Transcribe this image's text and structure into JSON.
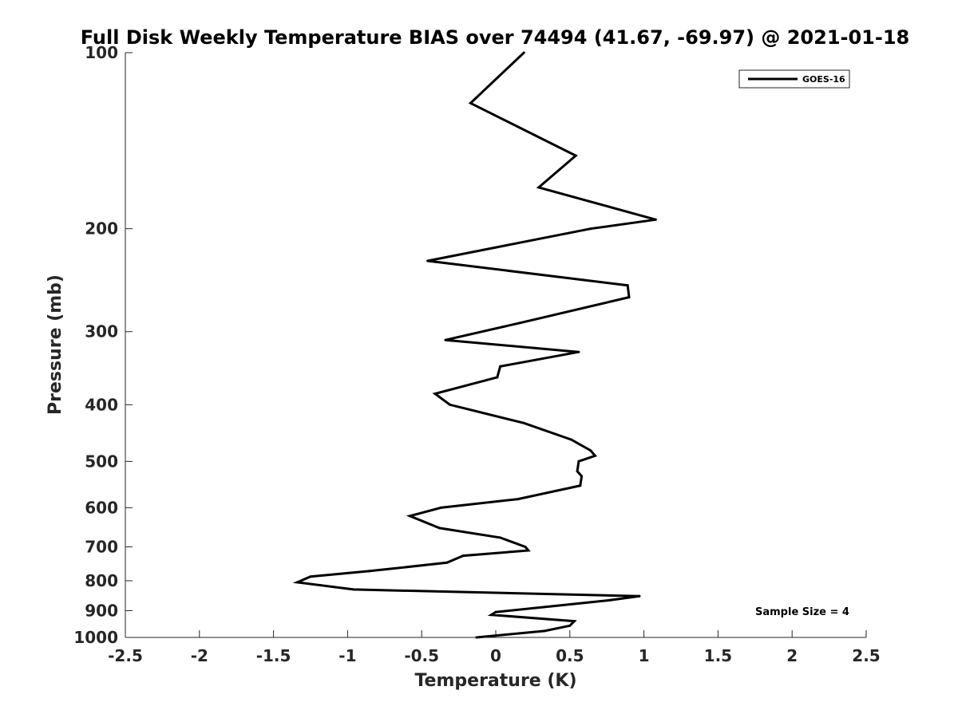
{
  "chart_data": {
    "type": "line",
    "title": "Full Disk Weekly Temperature BIAS over 74494 (41.67, -69.97) @ 2021-01-18",
    "xlabel": "Temperature (K)",
    "ylabel": "Pressure (mb)",
    "xlim": [
      -2.5,
      2.5
    ],
    "ylim": [
      100,
      1000
    ],
    "yscale": "log",
    "y_reversed": true,
    "xticks": [
      "-2.5",
      "-2",
      "-1.5",
      "-1",
      "-0.5",
      "0",
      "0.5",
      "1",
      "1.5",
      "2",
      "2.5"
    ],
    "yticks": [
      "100",
      "200",
      "300",
      "400",
      "500",
      "600",
      "700",
      "800",
      "900",
      "1000"
    ],
    "grid": false,
    "legend_position": "top-right",
    "line_color": "#000000",
    "annotation": "Sample Size = 4",
    "series": [
      {
        "name": "GOES-16",
        "points": [
          {
            "x": 0.19,
            "y": 100
          },
          {
            "x": -0.17,
            "y": 122
          },
          {
            "x": 0.54,
            "y": 150
          },
          {
            "x": 0.29,
            "y": 170
          },
          {
            "x": 1.08,
            "y": 193
          },
          {
            "x": 0.64,
            "y": 200
          },
          {
            "x": -0.46,
            "y": 227
          },
          {
            "x": 0.89,
            "y": 250
          },
          {
            "x": 0.9,
            "y": 262
          },
          {
            "x": 0.16,
            "y": 290
          },
          {
            "x": -0.34,
            "y": 310
          },
          {
            "x": 0.56,
            "y": 325
          },
          {
            "x": 0.03,
            "y": 344
          },
          {
            "x": 0.01,
            "y": 359
          },
          {
            "x": -0.41,
            "y": 383
          },
          {
            "x": -0.31,
            "y": 400
          },
          {
            "x": 0.19,
            "y": 430
          },
          {
            "x": 0.51,
            "y": 459
          },
          {
            "x": 0.64,
            "y": 479
          },
          {
            "x": 0.67,
            "y": 489
          },
          {
            "x": 0.56,
            "y": 500
          },
          {
            "x": 0.55,
            "y": 520
          },
          {
            "x": 0.58,
            "y": 530
          },
          {
            "x": 0.57,
            "y": 550
          },
          {
            "x": 0.15,
            "y": 580
          },
          {
            "x": -0.37,
            "y": 600
          },
          {
            "x": -0.58,
            "y": 620
          },
          {
            "x": -0.38,
            "y": 650
          },
          {
            "x": 0.03,
            "y": 675
          },
          {
            "x": 0.2,
            "y": 700
          },
          {
            "x": 0.22,
            "y": 710
          },
          {
            "x": -0.22,
            "y": 725
          },
          {
            "x": -0.33,
            "y": 745
          },
          {
            "x": -0.85,
            "y": 770
          },
          {
            "x": -1.25,
            "y": 787
          },
          {
            "x": -1.34,
            "y": 805
          },
          {
            "x": -0.96,
            "y": 828
          },
          {
            "x": 0.97,
            "y": 850
          },
          {
            "x": 0.75,
            "y": 865
          },
          {
            "x": 0.0,
            "y": 905
          },
          {
            "x": -0.03,
            "y": 915
          },
          {
            "x": 0.53,
            "y": 938
          },
          {
            "x": 0.5,
            "y": 955
          },
          {
            "x": 0.33,
            "y": 975
          },
          {
            "x": -0.13,
            "y": 1000
          }
        ]
      }
    ]
  }
}
